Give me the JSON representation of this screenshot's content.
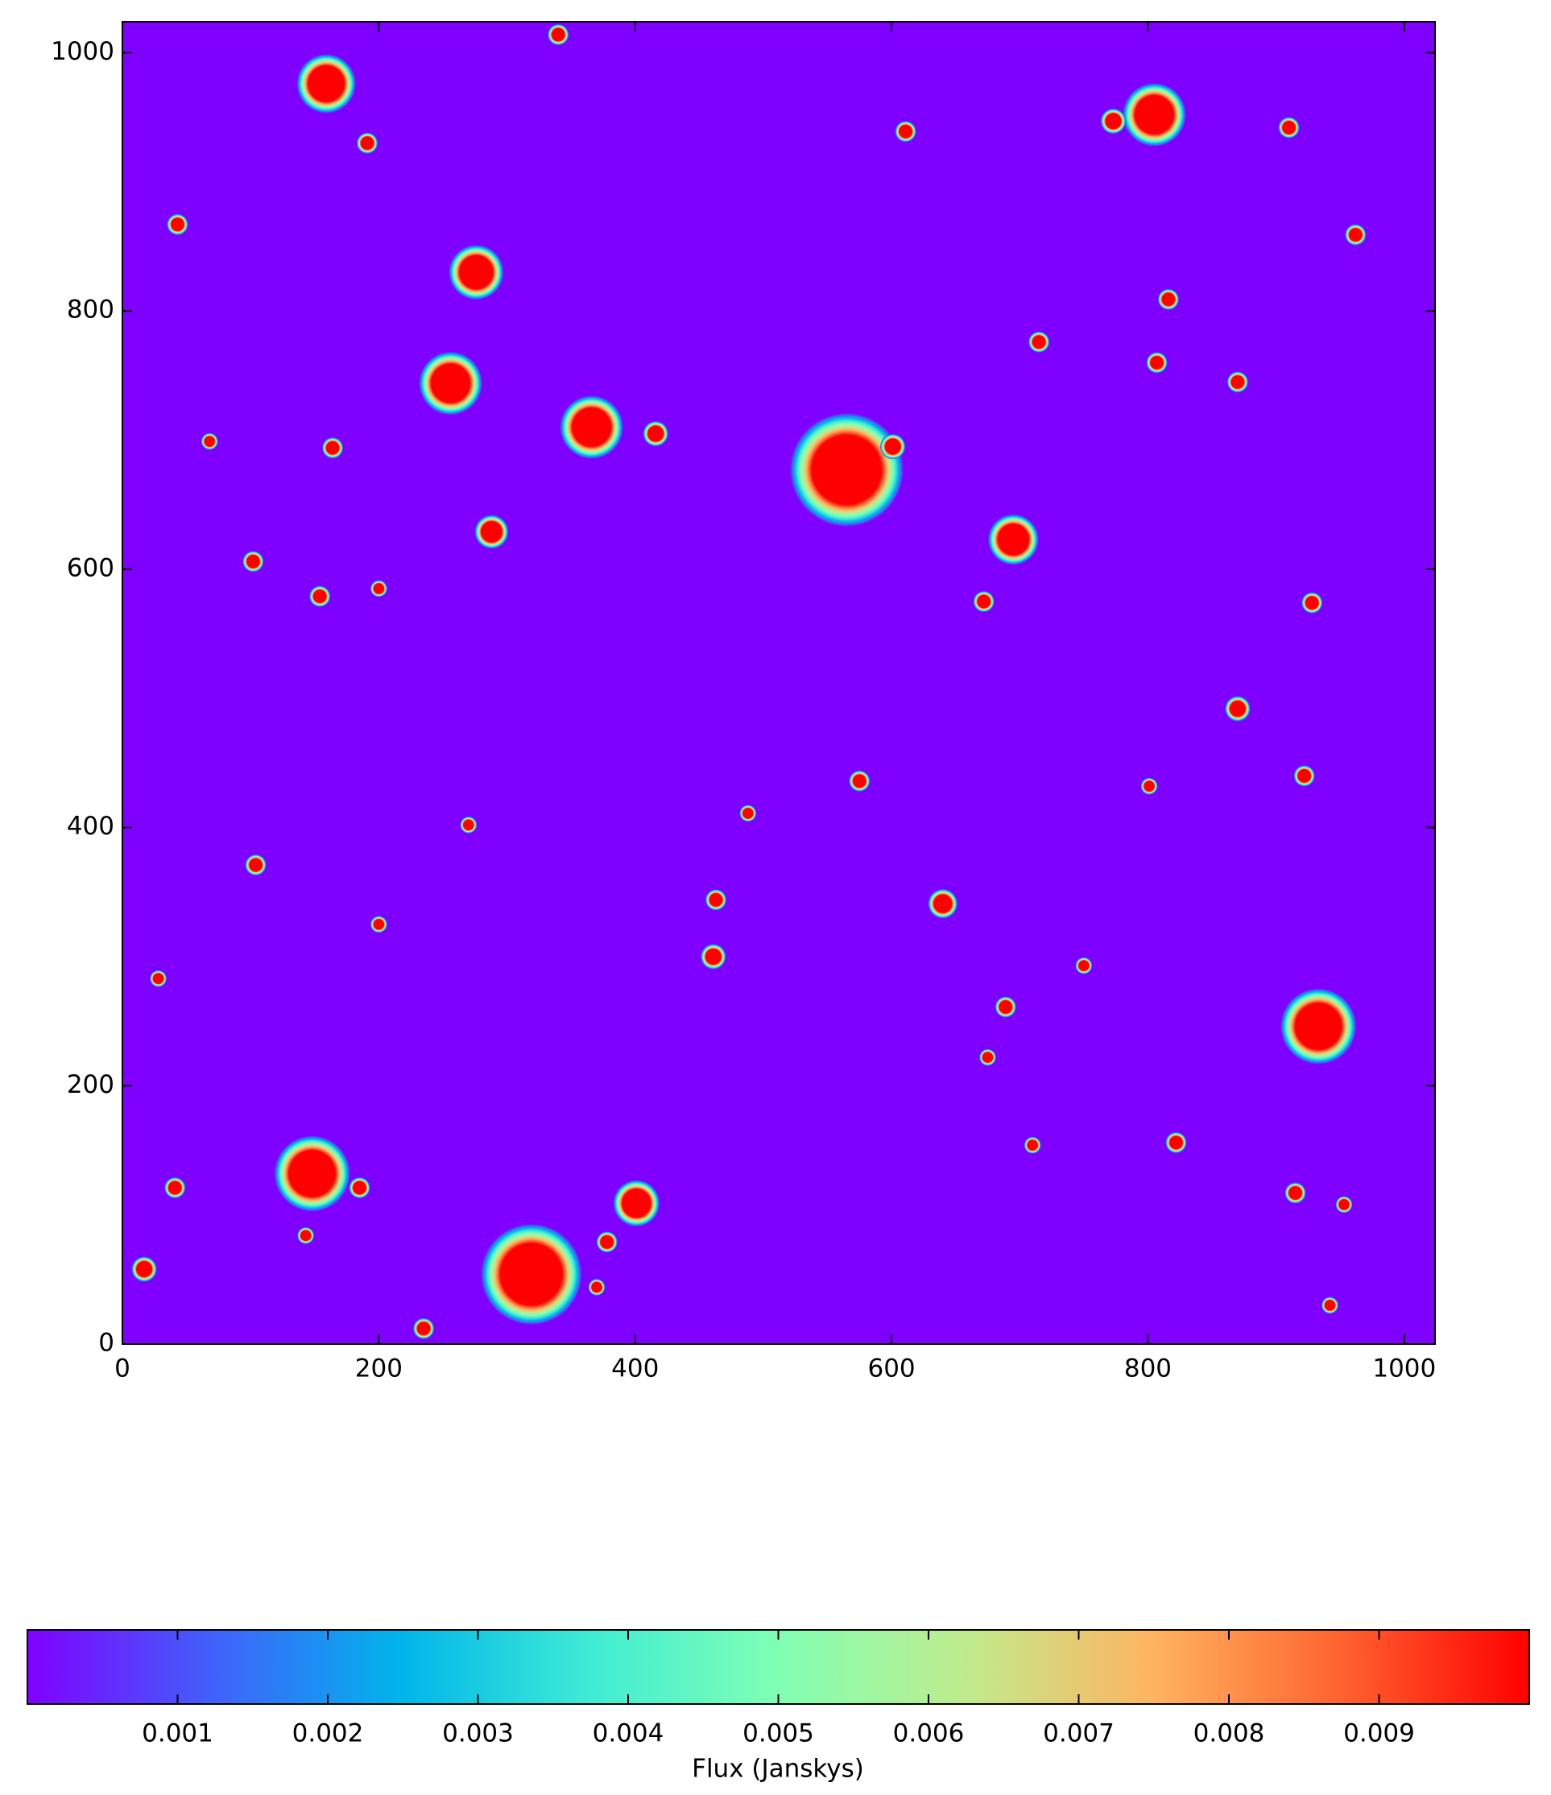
{
  "chart_data": {
    "type": "image",
    "xlim": [
      0,
      1024
    ],
    "ylim": [
      0,
      1024
    ],
    "xticks": [
      0,
      200,
      400,
      600,
      800,
      1000
    ],
    "yticks": [
      0,
      200,
      400,
      600,
      800,
      1000
    ],
    "sources": {
      "x": [
        565,
        159,
        805,
        276,
        256,
        366,
        695,
        933,
        148,
        319,
        401,
        640,
        288,
        601,
        17,
        340,
        611,
        910,
        773,
        191,
        43,
        962,
        816,
        715,
        416,
        807,
        870,
        102,
        164,
        68,
        200,
        154,
        928,
        672,
        870,
        922,
        488,
        575,
        270,
        104,
        200,
        28,
        461,
        463,
        750,
        689,
        675,
        822,
        710,
        185,
        41,
        915,
        953,
        378,
        235,
        942,
        143,
        370,
        801
      ],
      "y": [
        677,
        976,
        952,
        830,
        744,
        710,
        623,
        246,
        132,
        54,
        109,
        341,
        629,
        695,
        58,
        1014,
        939,
        942,
        947,
        930,
        867,
        859,
        809,
        776,
        705,
        760,
        745,
        606,
        694,
        699,
        585,
        579,
        574,
        575,
        492,
        440,
        411,
        436,
        402,
        371,
        325,
        283,
        300,
        344,
        293,
        261,
        222,
        156,
        154,
        121,
        121,
        117,
        108,
        79,
        12,
        30,
        84,
        44,
        432
      ],
      "r": [
        27,
        14,
        15,
        13,
        15,
        15,
        12,
        18,
        18,
        24,
        11,
        7,
        8,
        6,
        6,
        5,
        5,
        5,
        6,
        5,
        5,
        5,
        5,
        5,
        6,
        5,
        5,
        5,
        5,
        4,
        4,
        5,
        5,
        5,
        6,
        5,
        4,
        5,
        4,
        5,
        4,
        4,
        6,
        5,
        4,
        5,
        4,
        5,
        4,
        5,
        5,
        5,
        4,
        5,
        5,
        4,
        4,
        4,
        4
      ]
    },
    "colorbar": {
      "label": "Flux (Janskys)",
      "clim": [
        0,
        0.01
      ],
      "ticks": [
        0.001,
        0.002,
        0.003,
        0.004,
        0.005,
        0.006,
        0.007,
        0.008,
        0.009
      ],
      "cmap_colors": [
        "#8000ff",
        "#4062fa",
        "#00b5eb",
        "#40ecd4",
        "#80ffb4",
        "#c0eb8d",
        "#ffb360",
        "#ff6230",
        "#ff0000"
      ]
    }
  }
}
